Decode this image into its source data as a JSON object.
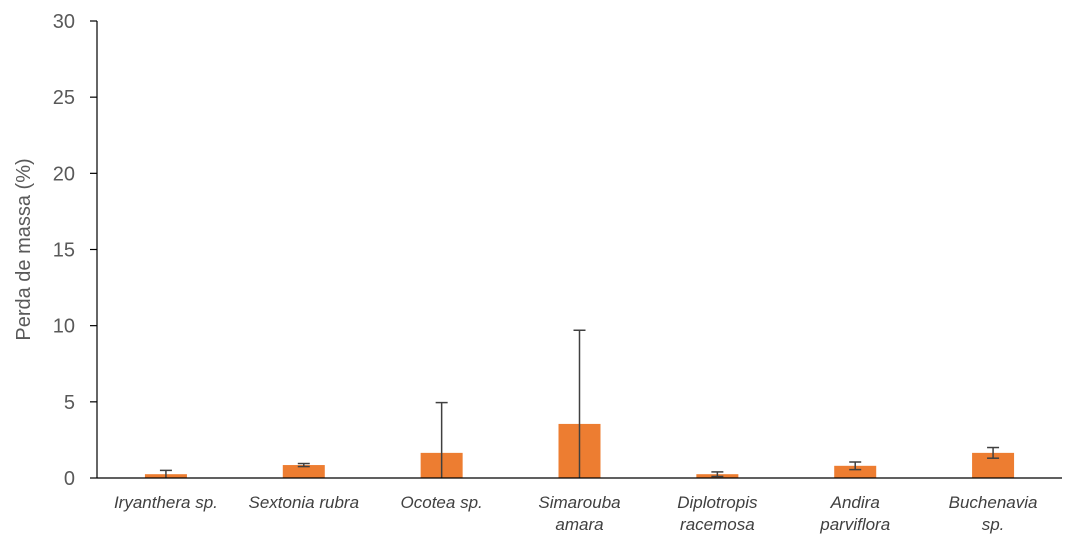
{
  "chart_data": {
    "type": "bar",
    "title": "",
    "xlabel": "",
    "ylabel": "Perda de massa (%)",
    "ylim": [
      0,
      30
    ],
    "yticks": [
      0,
      5,
      10,
      15,
      20,
      25,
      30
    ],
    "grid": false,
    "legend": "none",
    "categories": [
      [
        "Iryanthera sp."
      ],
      [
        "Sextonia rubra"
      ],
      [
        "Ocotea sp."
      ],
      [
        "Simarouba",
        "amara"
      ],
      [
        "Diplotropis",
        "racemosa"
      ],
      [
        "Andira",
        "parviflora"
      ],
      [
        "Buchenavia",
        "sp."
      ]
    ],
    "series": [
      {
        "values": [
          0.25,
          0.85,
          1.65,
          3.55,
          0.25,
          0.8,
          1.65
        ],
        "error_plus": [
          0.25,
          0.1,
          3.3,
          6.15,
          0.15,
          0.25,
          0.35
        ],
        "error_minus": [
          0.25,
          0.1,
          1.65,
          3.55,
          0.15,
          0.25,
          0.35
        ]
      }
    ],
    "colors": {
      "bar": "#ED7D31",
      "error": "#404040",
      "axis": "#000000"
    }
  }
}
